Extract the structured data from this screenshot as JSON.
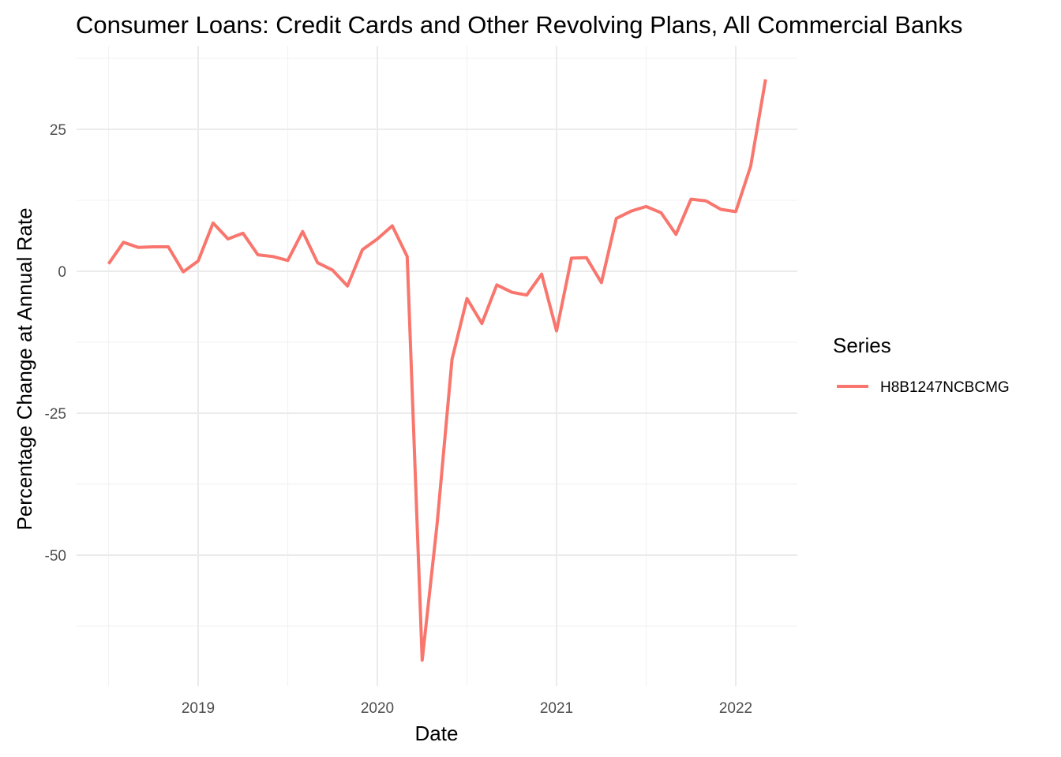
{
  "chart_data": {
    "type": "line",
    "title": "Consumer Loans: Credit Cards and Other Revolving Plans, All Commercial Banks",
    "xlabel": "Date",
    "ylabel": "Percentage Change at Annual Rate",
    "x_ticks": [
      "2019",
      "2020",
      "2021",
      "2022"
    ],
    "y_ticks": [
      "25",
      "0",
      "-25",
      "-50"
    ],
    "ylim": [
      -73,
      38
    ],
    "grid": true,
    "legend": {
      "title": "Series",
      "position": "right"
    },
    "series": [
      {
        "name": "H8B1247NCBCMG",
        "color": "#F8766D",
        "x": [
          "2018-07",
          "2018-08",
          "2018-09",
          "2018-10",
          "2018-11",
          "2018-12",
          "2019-01",
          "2019-02",
          "2019-03",
          "2019-04",
          "2019-05",
          "2019-06",
          "2019-07",
          "2019-08",
          "2019-09",
          "2019-10",
          "2019-11",
          "2019-12",
          "2020-01",
          "2020-02",
          "2020-03",
          "2020-04",
          "2020-05",
          "2020-06",
          "2020-07",
          "2020-08",
          "2020-09",
          "2020-10",
          "2020-11",
          "2020-12",
          "2021-01",
          "2021-02",
          "2021-03",
          "2021-04",
          "2021-05",
          "2021-06",
          "2021-07",
          "2021-08",
          "2021-09",
          "2021-10",
          "2021-11",
          "2021-12",
          "2022-01",
          "2022-02",
          "2022-03"
        ],
        "values": [
          1.3,
          5.1,
          4.2,
          4.3,
          4.3,
          -0.1,
          1.8,
          8.5,
          5.7,
          6.7,
          2.9,
          2.6,
          1.9,
          7.0,
          1.5,
          0.2,
          -2.6,
          3.8,
          5.7,
          8.0,
          2.6,
          -68.5,
          -44.5,
          -15.5,
          -4.8,
          -9.2,
          -2.4,
          -3.7,
          -4.2,
          -0.5,
          -10.5,
          2.3,
          2.4,
          -2.0,
          9.3,
          10.6,
          11.4,
          10.3,
          6.5,
          12.7,
          12.4,
          10.9,
          10.5,
          18.5,
          33.8
        ]
      }
    ]
  }
}
